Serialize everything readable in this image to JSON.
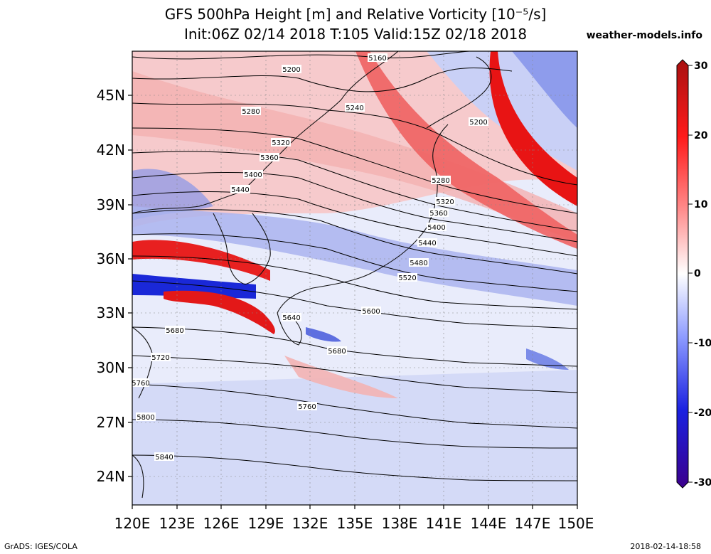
{
  "header": {
    "title_line1": "GFS 500hPa Height [m] and Relative Vorticity [10⁻⁵/s]",
    "title_line2": "Init:06Z 02/14 2018 T:105 Valid:15Z 02/18 2018",
    "site": "weather-models.info"
  },
  "map": {
    "lon_labels": [
      "120E",
      "123E",
      "126E",
      "129E",
      "132E",
      "135E",
      "138E",
      "141E",
      "144E",
      "147E",
      "150E"
    ],
    "lat_labels": [
      "45N",
      "42N",
      "39N",
      "36N",
      "33N",
      "30N",
      "27N",
      "24N"
    ],
    "contour_labels": [
      "5160",
      "5200",
      "5240",
      "5280",
      "5320",
      "5360",
      "5400",
      "5440",
      "5200",
      "5280",
      "5320",
      "5360",
      "5400",
      "5440",
      "5480",
      "5520",
      "5600",
      "5640",
      "5680",
      "5680",
      "5720",
      "5760",
      "5760",
      "5800",
      "5840"
    ]
  },
  "colorbar": {
    "tick_labels": [
      "30",
      "20",
      "10",
      "0",
      "-10",
      "-20",
      "-30"
    ],
    "colors": {
      "max": "#b01010",
      "high": "#ff2020",
      "mid_pos": "#ff9a9a",
      "zero": "#ffffff",
      "mid_neg": "#9aa8ff",
      "low": "#1020d0",
      "min": "#3a0090"
    }
  },
  "footer": {
    "left": "GrADS: IGES/COLA",
    "right": "2018-02-14-18:58"
  }
}
